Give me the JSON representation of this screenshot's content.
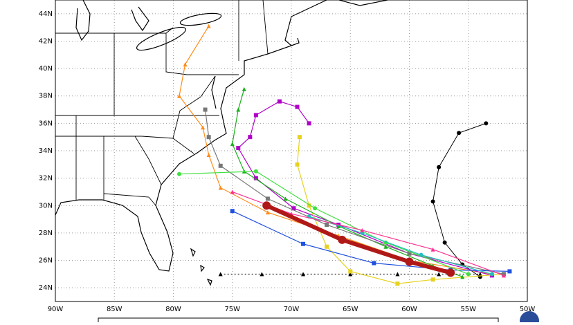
{
  "latitude_ticks": [
    {
      "value": 44,
      "label": "44N"
    },
    {
      "value": 42,
      "label": "42N"
    },
    {
      "value": 40,
      "label": "40N"
    },
    {
      "value": 38,
      "label": "38N"
    },
    {
      "value": 36,
      "label": "36N"
    },
    {
      "value": 34,
      "label": "34N"
    },
    {
      "value": 32,
      "label": "32N"
    },
    {
      "value": 30,
      "label": "30N"
    },
    {
      "value": 28,
      "label": "28N"
    },
    {
      "value": 26,
      "label": "26N"
    },
    {
      "value": 24,
      "label": "24N"
    }
  ],
  "longitude_ticks": [
    {
      "value": -90,
      "label": "90W"
    },
    {
      "value": -85,
      "label": "85W"
    },
    {
      "value": -80,
      "label": "80W"
    },
    {
      "value": -75,
      "label": "75W"
    },
    {
      "value": -70,
      "label": "70W"
    },
    {
      "value": -65,
      "label": "65W"
    },
    {
      "value": -60,
      "label": "60W"
    },
    {
      "value": -55,
      "label": "55W"
    },
    {
      "value": -50,
      "label": "50W"
    }
  ],
  "lon_range": [
    -90,
    -50
  ],
  "lat_range": [
    23,
    45
  ],
  "tracks": [
    {
      "color": "#000000",
      "width": 1,
      "dashed": true,
      "marker": "triangle",
      "points": [
        [
          -76,
          25
        ],
        [
          -72.5,
          25
        ],
        [
          -69,
          25
        ],
        [
          -65,
          25
        ],
        [
          -61,
          25
        ],
        [
          -57.5,
          25
        ],
        [
          -54,
          25
        ]
      ]
    },
    {
      "color": "#000000",
      "width": 1,
      "marker": "circle",
      "points": [
        [
          -54,
          24.8
        ],
        [
          -55.5,
          25.7
        ],
        [
          -57,
          27.3
        ],
        [
          -58,
          30.3
        ],
        [
          -57.5,
          32.8
        ],
        [
          -55.8,
          35.3
        ],
        [
          -53.5,
          36
        ]
      ]
    },
    {
      "color": "#ff8c1a",
      "width": 1.2,
      "marker": "triangle",
      "points": [
        [
          -53,
          25
        ],
        [
          -60,
          26
        ],
        [
          -66,
          27.8
        ],
        [
          -72,
          29.5
        ],
        [
          -76,
          31.3
        ],
        [
          -77,
          33.7
        ],
        [
          -77.5,
          35.7
        ],
        [
          -79.5,
          38
        ],
        [
          -79,
          40.3
        ],
        [
          -77,
          43.1
        ]
      ]
    },
    {
      "color": "#b000c8",
      "width": 1.2,
      "marker": "square",
      "points": [
        [
          -53,
          24.9
        ],
        [
          -60,
          26.5
        ],
        [
          -66,
          28.6
        ],
        [
          -69.8,
          29.8
        ],
        [
          -73,
          32
        ],
        [
          -74.5,
          34.2
        ],
        [
          -73.5,
          35
        ],
        [
          -73,
          36.6
        ],
        [
          -71,
          37.6
        ],
        [
          -69.5,
          37.2
        ],
        [
          -68.5,
          36
        ]
      ]
    },
    {
      "color": "#e6d21e",
      "width": 1.2,
      "marker": "square",
      "points": [
        [
          -52,
          25
        ],
        [
          -58,
          24.6
        ],
        [
          -61,
          24.3
        ],
        [
          -65,
          25.2
        ],
        [
          -67,
          27
        ],
        [
          -68.5,
          30
        ],
        [
          -69.5,
          33
        ],
        [
          -69.3,
          35
        ]
      ]
    },
    {
      "color": "#1ab01a",
      "width": 1.2,
      "marker": "triangle",
      "points": [
        [
          -55.5,
          24.8
        ],
        [
          -58,
          25.6
        ],
        [
          -62,
          27
        ],
        [
          -66,
          28.5
        ],
        [
          -70.5,
          30.5
        ],
        [
          -74,
          32.5
        ],
        [
          -75,
          34.5
        ],
        [
          -74.5,
          37
        ],
        [
          -74,
          38.5
        ]
      ]
    },
    {
      "color": "#777777",
      "width": 1.2,
      "marker": "square",
      "points": [
        [
          -52,
          25
        ],
        [
          -60,
          26.5
        ],
        [
          -67,
          28.6
        ],
        [
          -72,
          30.5
        ],
        [
          -76,
          32.9
        ],
        [
          -77,
          35
        ],
        [
          -77.3,
          37
        ]
      ]
    },
    {
      "color": "#2050e0",
      "width": 1.2,
      "marker": "square",
      "points": [
        [
          -51.5,
          25.2
        ],
        [
          -56.5,
          25.3
        ],
        [
          -63,
          25.8
        ],
        [
          -69,
          27.2
        ],
        [
          -75,
          29.6
        ]
      ]
    },
    {
      "color": "#40e040",
      "width": 1.2,
      "marker": "circle",
      "points": [
        [
          -55,
          25
        ],
        [
          -62,
          27.3
        ],
        [
          -68,
          29.8
        ],
        [
          -73,
          32.5
        ],
        [
          -79.5,
          32.3
        ]
      ]
    },
    {
      "color": "#20c0c0",
      "width": 1.2,
      "marker": "circle",
      "points": [
        [
          -53,
          25
        ],
        [
          -59,
          26.4
        ],
        [
          -64,
          28
        ],
        [
          -68.5,
          29.2
        ]
      ]
    },
    {
      "color": "#ff3090",
      "width": 1.2,
      "marker": "triangle",
      "points": [
        [
          -52,
          24.9
        ],
        [
          -58,
          26.8
        ],
        [
          -64,
          28.2
        ],
        [
          -70,
          29.4
        ],
        [
          -75,
          31
        ]
      ]
    },
    {
      "color": "#b01818",
      "width": 6,
      "marker": "circle",
      "points": [
        [
          -56.5,
          25.1
        ],
        [
          -60,
          25.9
        ],
        [
          -65.7,
          27.5
        ],
        [
          -72.1,
          30.0
        ]
      ]
    }
  ]
}
